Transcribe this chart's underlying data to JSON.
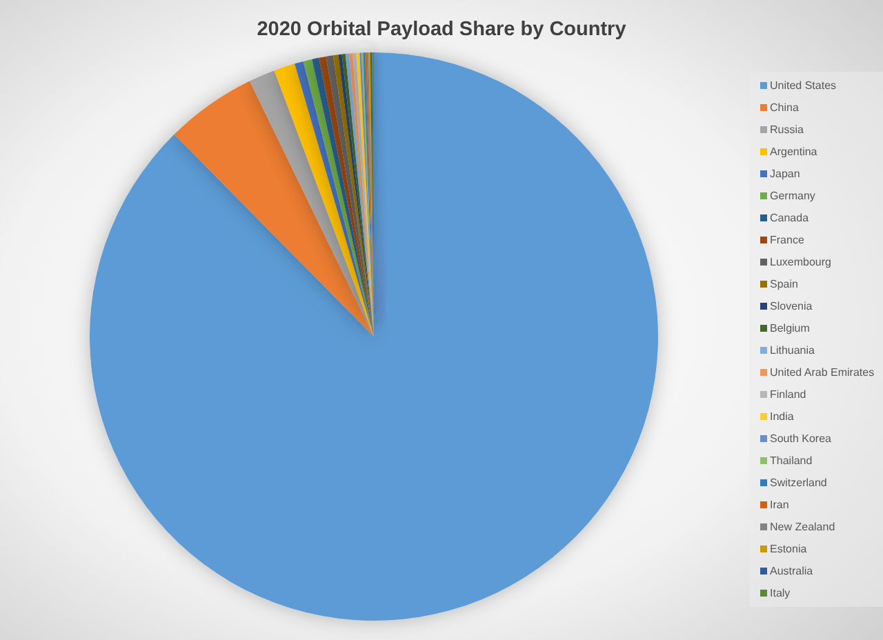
{
  "chart_data": {
    "type": "pie",
    "title": "2020 Orbital Payload Share by Country",
    "categories": [
      "United States",
      "China",
      "Russia",
      "Argentina",
      "Japan",
      "Germany",
      "Canada",
      "France",
      "Luxembourg",
      "Spain",
      "Slovenia",
      "Belgium",
      "Lithuania",
      "United Arab Emirates",
      "Finland",
      "India",
      "South Korea",
      "Thailand",
      "Switzerland",
      "Iran",
      "New Zealand",
      "Estonia",
      "Australia",
      "Italy"
    ],
    "values": [
      87.6,
      5.2,
      1.5,
      1.2,
      0.5,
      0.5,
      0.4,
      0.4,
      0.4,
      0.3,
      0.2,
      0.2,
      0.2,
      0.2,
      0.2,
      0.2,
      0.1,
      0.1,
      0.1,
      0.1,
      0.1,
      0.1,
      0.1,
      0.1
    ],
    "colors": [
      "#5b9bd5",
      "#ed7d31",
      "#a5a5a5",
      "#ffc000",
      "#4472c4",
      "#70ad47",
      "#255e91",
      "#9e480e",
      "#636363",
      "#997300",
      "#264478",
      "#43682b",
      "#7cafdd",
      "#f1975a",
      "#b7b7b7",
      "#ffcd33",
      "#698ed0",
      "#8cc168",
      "#327dc2",
      "#d26012",
      "#848484",
      "#cc9a00",
      "#335aa1",
      "#5a8a39"
    ],
    "legend": "right"
  }
}
